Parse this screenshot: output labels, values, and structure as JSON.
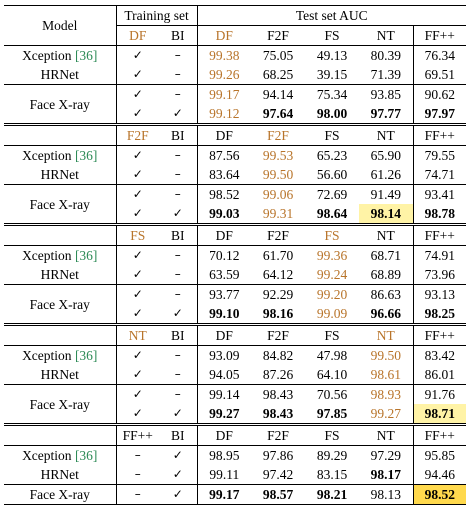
{
  "header": {
    "model": "Model",
    "training_set": "Training set",
    "test_set": "Test set AUC"
  },
  "blocks": [
    {
      "train_cols": [
        "DF",
        "BI"
      ],
      "train_orange": [
        true,
        false
      ],
      "test_cols": [
        "DF",
        "F2F",
        "FS",
        "NT",
        "FF++"
      ],
      "test_orange": [
        true,
        false,
        false,
        false,
        false
      ],
      "rows": [
        {
          "model": "Xception",
          "cite": "[36]",
          "train": [
            "✓",
            "–"
          ],
          "vals": [
            "99.38",
            "75.05",
            "49.13",
            "80.39",
            "76.34"
          ]
        },
        {
          "model": "HRNet",
          "cite": "",
          "train": [
            "✓",
            "–"
          ],
          "vals": [
            "99.26",
            "68.25",
            "39.15",
            "71.39",
            "69.51"
          ]
        },
        {
          "model": "Face X-ray",
          "cite": "",
          "train": [
            "✓",
            "–"
          ],
          "vals": [
            "99.17",
            "94.14",
            "75.34",
            "93.85",
            "90.62"
          ]
        },
        {
          "model": "",
          "cite": "",
          "train": [
            "✓",
            "✓"
          ],
          "vals": [
            "99.12",
            "97.64",
            "98.00",
            "97.77",
            "97.97"
          ]
        }
      ]
    },
    {
      "train_cols": [
        "F2F",
        "BI"
      ],
      "train_orange": [
        true,
        false
      ],
      "test_cols": [
        "DF",
        "F2F",
        "FS",
        "NT",
        "FF++"
      ],
      "test_orange": [
        false,
        true,
        false,
        false,
        false
      ],
      "rows": [
        {
          "model": "Xception",
          "cite": "[36]",
          "train": [
            "✓",
            "–"
          ],
          "vals": [
            "87.56",
            "99.53",
            "65.23",
            "65.90",
            "79.55"
          ]
        },
        {
          "model": "HRNet",
          "cite": "",
          "train": [
            "✓",
            "–"
          ],
          "vals": [
            "83.64",
            "99.50",
            "56.60",
            "61.26",
            "74.71"
          ]
        },
        {
          "model": "Face X-ray",
          "cite": "",
          "train": [
            "✓",
            "–"
          ],
          "vals": [
            "98.52",
            "99.06",
            "72.69",
            "91.49",
            "93.41"
          ]
        },
        {
          "model": "",
          "cite": "",
          "train": [
            "✓",
            "✓"
          ],
          "vals": [
            "99.03",
            "99.31",
            "98.64",
            "98.14",
            "98.78"
          ]
        }
      ]
    },
    {
      "train_cols": [
        "FS",
        "BI"
      ],
      "train_orange": [
        true,
        false
      ],
      "test_cols": [
        "DF",
        "F2F",
        "FS",
        "NT",
        "FF++"
      ],
      "test_orange": [
        false,
        false,
        true,
        false,
        false
      ],
      "rows": [
        {
          "model": "Xception",
          "cite": "[36]",
          "train": [
            "✓",
            "–"
          ],
          "vals": [
            "70.12",
            "61.70",
            "99.36",
            "68.71",
            "74.91"
          ]
        },
        {
          "model": "HRNet",
          "cite": "",
          "train": [
            "✓",
            "–"
          ],
          "vals": [
            "63.59",
            "64.12",
            "99.24",
            "68.89",
            "73.96"
          ]
        },
        {
          "model": "Face X-ray",
          "cite": "",
          "train": [
            "✓",
            "–"
          ],
          "vals": [
            "93.77",
            "92.29",
            "99.20",
            "86.63",
            "93.13"
          ]
        },
        {
          "model": "",
          "cite": "",
          "train": [
            "✓",
            "✓"
          ],
          "vals": [
            "99.10",
            "98.16",
            "99.09",
            "96.66",
            "98.25"
          ]
        }
      ]
    },
    {
      "train_cols": [
        "NT",
        "BI"
      ],
      "train_orange": [
        true,
        false
      ],
      "test_cols": [
        "DF",
        "F2F",
        "FS",
        "NT",
        "FF++"
      ],
      "test_orange": [
        false,
        false,
        false,
        true,
        false
      ],
      "rows": [
        {
          "model": "Xception",
          "cite": "[36]",
          "train": [
            "✓",
            "–"
          ],
          "vals": [
            "93.09",
            "84.82",
            "47.98",
            "99.50",
            "83.42"
          ]
        },
        {
          "model": "HRNet",
          "cite": "",
          "train": [
            "✓",
            "–"
          ],
          "vals": [
            "94.05",
            "87.26",
            "64.10",
            "98.61",
            "86.01"
          ]
        },
        {
          "model": "Face X-ray",
          "cite": "",
          "train": [
            "✓",
            "–"
          ],
          "vals": [
            "99.14",
            "98.43",
            "70.56",
            "98.93",
            "91.76"
          ]
        },
        {
          "model": "",
          "cite": "",
          "train": [
            "✓",
            "✓"
          ],
          "vals": [
            "99.27",
            "98.43",
            "97.85",
            "99.27",
            "98.71"
          ]
        }
      ]
    },
    {
      "train_cols": [
        "FF++",
        "BI"
      ],
      "train_orange": [
        false,
        false
      ],
      "test_cols": [
        "DF",
        "F2F",
        "FS",
        "NT",
        "FF++"
      ],
      "test_orange": [
        false,
        false,
        false,
        false,
        false
      ],
      "rows": [
        {
          "model": "Xception",
          "cite": "[36]",
          "train": [
            "–",
            "✓"
          ],
          "vals": [
            "98.95",
            "97.86",
            "89.29",
            "97.29",
            "95.85"
          ]
        },
        {
          "model": "HRNet",
          "cite": "",
          "train": [
            "–",
            "✓"
          ],
          "vals": [
            "99.11",
            "97.42",
            "83.15",
            "98.17",
            "94.46"
          ]
        },
        {
          "model": "Face X-ray",
          "cite": "",
          "train": [
            "–",
            "✓"
          ],
          "vals": [
            "99.17",
            "98.57",
            "98.21",
            "98.13",
            "98.52"
          ]
        }
      ]
    }
  ],
  "styles": {
    "orange_color": "#b8742a",
    "cite_color": "#2e8b57",
    "highlight_light": "#fff3a6",
    "highlight_strong": "#ffd94d"
  }
}
